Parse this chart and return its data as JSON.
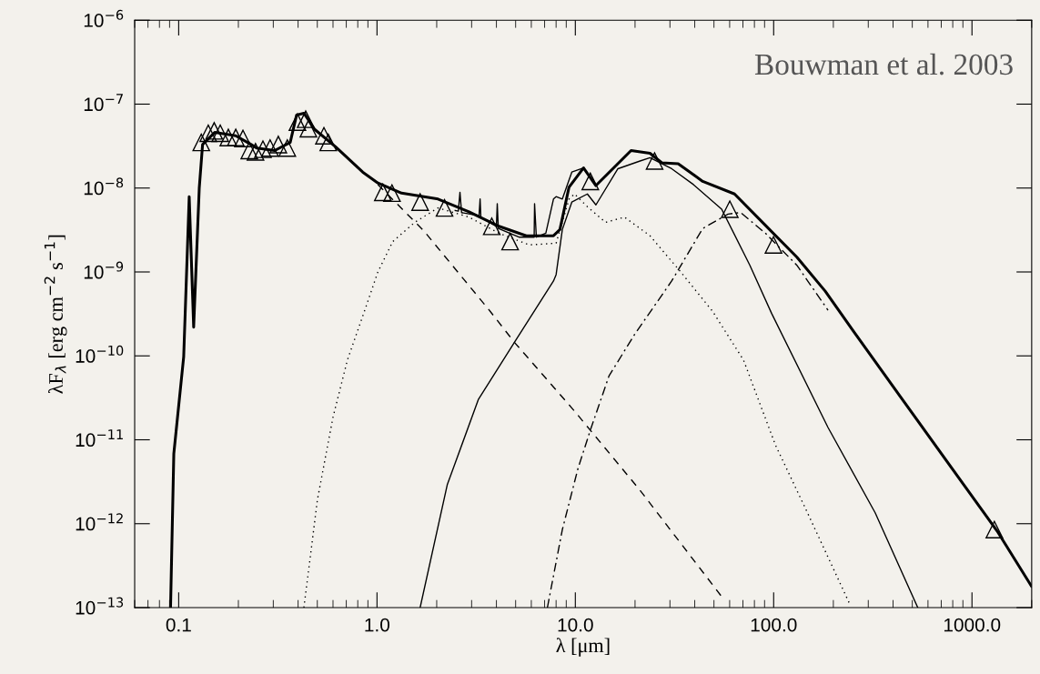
{
  "chart_data": {
    "type": "line",
    "xlabel": "λ [μm]",
    "ylabel": "λF$_{λ}$ [erg cm$^{−2}$ s$^{−1}$]",
    "log": "xy",
    "grid": false,
    "legend": false,
    "annotations": [
      "Bouwman et al. 2003"
    ],
    "xlim": [
      0.06,
      2000
    ],
    "ylim": [
      1e-13,
      1e-06
    ],
    "xticks": [
      {
        "value": 0.1,
        "label": "0.1"
      },
      {
        "value": 1,
        "label": "1.0"
      },
      {
        "value": 10,
        "label": "10.0"
      },
      {
        "value": 100,
        "label": "100.0"
      },
      {
        "value": 1000,
        "label": "1000.0"
      }
    ],
    "yticks": [
      {
        "value": 1e-13,
        "label": "10$^{−13}$"
      },
      {
        "value": 1e-12,
        "label": "10$^{−12}$"
      },
      {
        "value": 1e-11,
        "label": "10$^{−11}$"
      },
      {
        "value": 1e-10,
        "label": "10$^{−10}$"
      },
      {
        "value": 1e-09,
        "label": "10$^{−9}$"
      },
      {
        "value": 1e-08,
        "label": "10$^{−8}$"
      },
      {
        "value": 1e-07,
        "label": "10$^{−7}$"
      },
      {
        "value": 1e-06,
        "label": "10$^{−6}$"
      }
    ],
    "series": [
      {
        "color": "#000000",
        "line_style": "solid",
        "x": [
          0.091,
          0.0945,
          0.106,
          0.113,
          0.119,
          0.127,
          0.132,
          0.152,
          0.194,
          0.232,
          0.247,
          0.305,
          0.365,
          0.393,
          0.428,
          0.485,
          0.618,
          0.847,
          1.01,
          1.33,
          2.03,
          2.91,
          4.12,
          5.66,
          7.76,
          8.36,
          9.29,
          11.0,
          12.7,
          19.1,
          23.8,
          27.3,
          33.0,
          43.9,
          63.5,
          90.8,
          131,
          182,
          253,
          438,
          1352,
          1995
        ],
        "values": [
          1e-13,
          6.8e-12,
          9.8e-11,
          7.9e-09,
          2.2e-10,
          1e-08,
          3.3e-08,
          4.6e-08,
          4.2e-08,
          3.3e-08,
          3e-08,
          2.8e-08,
          3.5e-08,
          7.4e-08,
          7.8e-08,
          5e-08,
          3.1e-08,
          1.55e-08,
          1.15e-08,
          8.7e-09,
          7.4e-09,
          5.2e-09,
          3.5e-09,
          2.7e-09,
          2.7e-09,
          3.2e-09,
          1.02e-08,
          1.74e-08,
          1.07e-08,
          2.8e-08,
          2.6e-08,
          2e-08,
          1.95e-08,
          1.2e-08,
          8.5e-09,
          3.6e-09,
          1.5e-09,
          5.9e-10,
          1.95e-10,
          3.2e-11,
          7.9e-13,
          1.8e-13
        ]
      },
      {
        "color": "#000000",
        "line_style": "solid",
        "x": [
          2.48,
          2.57,
          2.62,
          2.67,
          3.27,
          3.31,
          3.34,
          4.0,
          4.04,
          4.09,
          5.2,
          6.2,
          6.23,
          6.36,
          7.1,
          7.76,
          8.0,
          8.6,
          9.6,
          11.0
        ],
        "values": [
          5.4e-09,
          5.3e-09,
          8.9e-09,
          5.1e-09,
          4.7e-09,
          7.4e-09,
          4.5e-09,
          3.5e-09,
          6.5e-09,
          3.3e-09,
          2.6e-09,
          2.6e-09,
          6.5e-09,
          2.6e-09,
          2.9e-09,
          7.4e-09,
          7.9e-09,
          7.4e-09,
          1.55e-08,
          1.74e-08
        ]
      },
      {
        "color": "#000000",
        "line_style": "dashed",
        "x": [
          1.01,
          1.26,
          1.72,
          3.72,
          4.93,
          9.9,
          21.2,
          54.7
        ],
        "values": [
          1.1e-08,
          6.5e-09,
          3.1e-09,
          3.4e-10,
          1.45e-10,
          2.2e-11,
          2.5e-12,
          1.35e-13
        ]
      },
      {
        "color": "#000000",
        "line_style": "dotted",
        "x": [
          0.428,
          0.501,
          0.6,
          0.709,
          0.875,
          1.01,
          1.2,
          1.55,
          2.03,
          2.91,
          4.12,
          5.85,
          8.0,
          9.3,
          9.9,
          11.5,
          14.2,
          17.7,
          23.8,
          34.0,
          49.2,
          70.5,
          102,
          146,
          242
        ],
        "values": [
          1e-13,
          1.95e-12,
          1.86e-11,
          8.9e-11,
          3.7e-10,
          1e-09,
          2.3e-09,
          3.9e-09,
          5.8e-09,
          4.5e-09,
          2.9e-09,
          2.1e-09,
          2.2e-09,
          7.4e-09,
          8.5e-09,
          6e-09,
          3.9e-09,
          4.5e-09,
          2.7e-09,
          1e-09,
          3.4e-10,
          8.9e-11,
          8.7e-12,
          1.45e-12,
          1.1e-13
        ]
      },
      {
        "color": "#000000",
        "line_style": "solid",
        "x": [
          1.65,
          2.26,
          3.24,
          4.93,
          7.76,
          8.0,
          8.6,
          9.6,
          11.5,
          12.7,
          16.4,
          21.2,
          23.8,
          30.6,
          39.4,
          54.7,
          75.9,
          97.7,
          188,
          325,
          533
        ],
        "values": [
          1e-13,
          2.9e-12,
          3e-11,
          1.45e-10,
          7.8e-10,
          9.3e-10,
          3.2e-09,
          6.8e-09,
          8.5e-09,
          6.3e-09,
          1.7e-08,
          2.1e-08,
          2.3e-08,
          1.7e-08,
          1.1e-08,
          5.6e-09,
          1.2e-09,
          3.2e-10,
          1.4e-11,
          1.35e-12,
          1e-13
        ]
      },
      {
        "color": "#000000",
        "line_style": "dashdot",
        "x": [
          7.23,
          8.6,
          10.3,
          11.9,
          14.8,
          19.9,
          30.6,
          43.9,
          58.9,
          68.2,
          90.8,
          131,
          188
        ],
        "values": [
          1e-13,
          8.5e-13,
          4.5e-12,
          1.3e-11,
          5.8e-11,
          1.8e-10,
          7.8e-10,
          3.3e-09,
          4.9e-09,
          5.1e-09,
          2.9e-09,
          1.2e-09,
          3.5e-10
        ]
      },
      {
        "type": "scatter",
        "color": "#000000",
        "marker": "triangle",
        "x": [
          0.13,
          0.141,
          0.151,
          0.162,
          0.178,
          0.194,
          0.211,
          0.227,
          0.244,
          0.266,
          0.289,
          0.318,
          0.353,
          0.397,
          0.437,
          0.451,
          0.54,
          0.568,
          1.07,
          1.19,
          1.65,
          2.19,
          3.79,
          4.69,
          11.9,
          25.1,
          60.1,
          99.8,
          1297
        ],
        "values": [
          3.5e-08,
          4.5e-08,
          4.8e-08,
          4.5e-08,
          4e-08,
          4e-08,
          3.9e-08,
          2.8e-08,
          2.7e-08,
          2.9e-08,
          3e-08,
          3.3e-08,
          3e-08,
          6.1e-08,
          6.6e-08,
          5.1e-08,
          4.2e-08,
          3.5e-08,
          8.9e-09,
          8.7e-09,
          6.8e-09,
          5.8e-09,
          3.5e-09,
          2.3e-09,
          1.2e-08,
          2.1e-08,
          5.6e-09,
          2.1e-09,
          8.5e-13
        ]
      }
    ]
  }
}
